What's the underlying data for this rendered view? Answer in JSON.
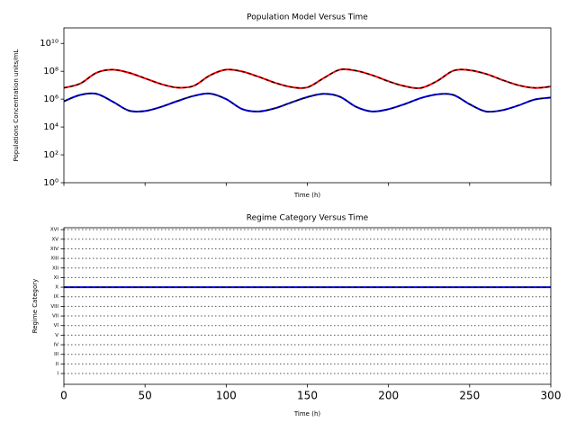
{
  "chart_data": [
    {
      "type": "line",
      "title": "Population Model Versus Time",
      "xlabel": "Time (h)",
      "ylabel": "Populations Concentration units/mL",
      "yscale": "log",
      "xlim": [
        0,
        300
      ],
      "ylim": [
        1,
        130000000000.0
      ],
      "xticks": [
        0,
        50,
        100,
        150,
        200,
        250,
        300
      ],
      "xtick_labels": false,
      "yticks": [
        {
          "value": 1,
          "label": "10⁰"
        },
        {
          "value": 100,
          "label": "10²"
        },
        {
          "value": 10000,
          "label": "10⁴"
        },
        {
          "value": 1000000,
          "label": "10⁶"
        },
        {
          "value": 100000000,
          "label": "10⁸"
        },
        {
          "value": 10000000000,
          "label": "10¹⁰"
        }
      ],
      "x": [
        0,
        10,
        20,
        30,
        40,
        50,
        60,
        70,
        80,
        90,
        100,
        110,
        120,
        130,
        140,
        150,
        160,
        170,
        180,
        190,
        200,
        210,
        220,
        230,
        240,
        250,
        260,
        270,
        280,
        290,
        300
      ],
      "series": [
        {
          "color": "#ff0000",
          "dash_color": "#000000",
          "values": [
            6400000.0,
            13000000.0,
            77000000.0,
            130000000.0,
            79000000.0,
            31000000.0,
            12000000.0,
            6700000.0,
            9000000.0,
            51000000.0,
            130000000.0,
            95000000.0,
            40000000.0,
            15000000.0,
            7400000.0,
            7000000.0,
            32000000.0,
            130000000.0,
            110000000.0,
            52000000.0,
            19000000.0,
            8500000.0,
            6300000.0,
            20000000.0,
            110000000.0,
            120000000.0,
            65000000.0,
            24000000.0,
            10000000.0,
            6400000.0,
            8000000.0
          ]
        },
        {
          "color": "#0000ff",
          "dash_color": "#000000",
          "values": [
            700000.0,
            2000000.0,
            2400000.0,
            670000.0,
            150000.0,
            140000.0,
            280000.0,
            730000.0,
            1700000.0,
            2500000.0,
            1000000.0,
            190000.0,
            130000.0,
            220000.0,
            570000.0,
            1400000.0,
            2400000.0,
            1500000.0,
            280000.0,
            130000.0,
            190000.0,
            440000.0,
            1200000.0,
            2200000.0,
            2000000.0,
            430000.0,
            130000.0,
            160000.0,
            350000.0,
            930000.0,
            1300000.0
          ]
        }
      ]
    },
    {
      "type": "line",
      "title": "Regime Category Versus Time",
      "xlabel": "Time (h)",
      "ylabel": "Regime Category",
      "xlim": [
        0,
        300
      ],
      "ylim": [
        -0.125,
        16.2
      ],
      "grid": true,
      "grid_style": "dotted",
      "xticks": [
        0,
        50,
        100,
        150,
        200,
        250,
        300
      ],
      "xtick_labels": true,
      "yticks": [
        {
          "value": 1,
          "label": "I"
        },
        {
          "value": 2,
          "label": "II"
        },
        {
          "value": 3,
          "label": "III"
        },
        {
          "value": 4,
          "label": "IV"
        },
        {
          "value": 5,
          "label": "V"
        },
        {
          "value": 6,
          "label": "VI"
        },
        {
          "value": 7,
          "label": "VII"
        },
        {
          "value": 8,
          "label": "VIII"
        },
        {
          "value": 9,
          "label": "IX"
        },
        {
          "value": 10,
          "label": "X"
        },
        {
          "value": 11,
          "label": "XI"
        },
        {
          "value": 12,
          "label": "XII"
        },
        {
          "value": 13,
          "label": "XIII"
        },
        {
          "value": 14,
          "label": "XIV"
        },
        {
          "value": 15,
          "label": "XV"
        },
        {
          "value": 16,
          "label": "XVI"
        }
      ],
      "x": [
        0,
        300
      ],
      "series": [
        {
          "color": "#0000ff",
          "dash_color": "#000000",
          "values": [
            10,
            10
          ]
        }
      ]
    }
  ]
}
